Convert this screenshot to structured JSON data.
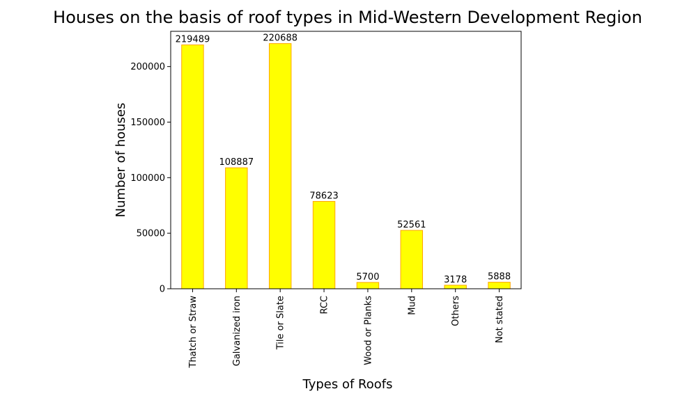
{
  "chart_data": {
    "type": "bar",
    "title": "Houses on the basis of roof types in Mid-Western Development Region",
    "xlabel": "Types of Roofs",
    "ylabel": "Number of houses",
    "categories": [
      "Thatch or Straw",
      "Galvanized iron",
      "Tile or Slate",
      "RCC",
      "Wood or Planks",
      "Mud",
      "Others",
      "Not stated"
    ],
    "values": [
      219489,
      108887,
      220688,
      78623,
      5700,
      52561,
      3178,
      5888
    ],
    "yticks": [
      0,
      50000,
      100000,
      150000,
      200000
    ],
    "ylim": [
      0,
      231722
    ],
    "grid": false,
    "colors": {
      "bar_fill": "#ffff00",
      "bar_edge": "#ffa500"
    }
  }
}
